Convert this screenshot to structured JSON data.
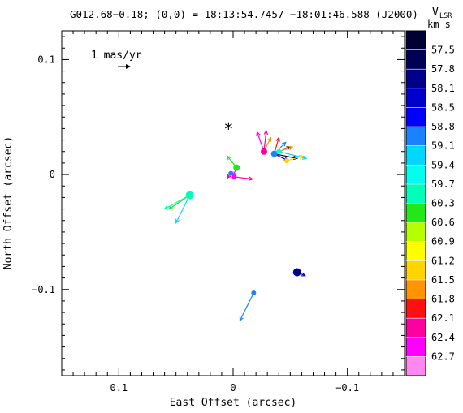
{
  "chart_data": {
    "type": "scatter",
    "title": "G012.68−0.18;  (0,0) = 18:13:54.7457    −18:01:46.588 (J2000)",
    "xlabel": "East Offset (arcsec)",
    "ylabel": "North Offset (arcsec)",
    "xlim": [
      0.15,
      -0.15
    ],
    "ylim": [
      -0.175,
      0.125
    ],
    "x_ticks": [
      {
        "value": 0.1,
        "label": "0.1"
      },
      {
        "value": 0,
        "label": "0"
      },
      {
        "value": -0.1,
        "label": "−0.1"
      }
    ],
    "y_ticks": [
      {
        "value": 0.1,
        "label": "0.1"
      },
      {
        "value": 0,
        "label": "0"
      },
      {
        "value": -0.1,
        "label": "−0.1"
      }
    ],
    "colorbar": {
      "title_main": "V",
      "title_sub": "LSR",
      "units": "km s",
      "labels": [
        "57.5",
        "57.8",
        "58.1",
        "58.5",
        "58.8",
        "59.1",
        "59.4",
        "59.7",
        "60.3",
        "60.6",
        "60.9",
        "61.2",
        "61.5",
        "61.8",
        "62.1",
        "62.4",
        "62.7"
      ],
      "colors": [
        "#000033",
        "#000055",
        "#000088",
        "#0000cc",
        "#0000ff",
        "#1a82ff",
        "#00d8ff",
        "#00ffee",
        "#00ffb8",
        "#22e81a",
        "#b4ff00",
        "#ffff00",
        "#ffd400",
        "#ff9300",
        "#ff1010",
        "#ff00a0",
        "#ff00ff",
        "#ff88f0"
      ]
    },
    "scale_arrow": {
      "label": "1 mas/yr",
      "dx": 1,
      "dy": 0
    },
    "reference_star": {
      "x": 0.004,
      "y": 0.041
    },
    "spots": [
      {
        "x": 0.038,
        "y": -0.018,
        "size": 5,
        "color": "#00ffb8"
      },
      {
        "x": -0.056,
        "y": -0.085,
        "size": 5,
        "color": "#000088"
      },
      {
        "x": -0.018,
        "y": -0.103,
        "size": 3,
        "color": "#1a82ff"
      },
      {
        "x": -0.003,
        "y": 0.006,
        "size": 4,
        "color": "#22e81a"
      },
      {
        "x": -0.001,
        "y": -0.002,
        "size": 3,
        "color": "#ff00ff"
      },
      {
        "x": 0.002,
        "y": 0.001,
        "size": 3,
        "color": "#1a82ff"
      },
      {
        "x": -0.027,
        "y": 0.02,
        "size": 4,
        "color": "#ff00a0"
      },
      {
        "x": -0.036,
        "y": 0.018,
        "size": 4,
        "color": "#1a82ff"
      },
      {
        "x": -0.047,
        "y": 0.012,
        "size": 3,
        "color": "#ffd400"
      },
      {
        "x": -0.04,
        "y": 0.02,
        "size": 3,
        "color": "#00ffb8"
      }
    ],
    "arrows": [
      {
        "x": 0.038,
        "y": -0.018,
        "dx": 0.018,
        "dy": -0.012,
        "color": "#22e81a"
      },
      {
        "x": 0.038,
        "y": -0.018,
        "dx": 0.022,
        "dy": -0.012,
        "color": "#00ffb8"
      },
      {
        "x": 0.038,
        "y": -0.018,
        "dx": 0.012,
        "dy": -0.024,
        "color": "#00d8ff"
      },
      {
        "x": -0.056,
        "y": -0.085,
        "dx": -0.007,
        "dy": -0.003,
        "color": "#0000cc"
      },
      {
        "x": -0.018,
        "y": -0.103,
        "dx": 0.012,
        "dy": -0.024,
        "color": "#1a82ff"
      },
      {
        "x": -0.003,
        "y": 0.006,
        "dx": 0.008,
        "dy": 0.01,
        "color": "#22e81a"
      },
      {
        "x": -0.003,
        "y": 0.006,
        "dx": 0.003,
        "dy": -0.007,
        "color": "#ff00ff"
      },
      {
        "x": -0.001,
        "y": -0.002,
        "dx": -0.016,
        "dy": -0.002,
        "color": "#ff00a0"
      },
      {
        "x": 0.002,
        "y": 0.001,
        "dx": 0.003,
        "dy": -0.004,
        "color": "#ff00a0"
      },
      {
        "x": -0.027,
        "y": 0.02,
        "dx": 0.006,
        "dy": 0.017,
        "color": "#ff00ff"
      },
      {
        "x": -0.027,
        "y": 0.02,
        "dx": -0.002,
        "dy": 0.018,
        "color": "#ff00a0"
      },
      {
        "x": -0.027,
        "y": 0.02,
        "dx": -0.006,
        "dy": 0.012,
        "color": "#ff9300"
      },
      {
        "x": -0.036,
        "y": 0.018,
        "dx": -0.012,
        "dy": -0.006,
        "color": "#000088"
      },
      {
        "x": -0.036,
        "y": 0.018,
        "dx": -0.014,
        "dy": 0.006,
        "color": "#0000cc"
      },
      {
        "x": -0.036,
        "y": 0.018,
        "dx": -0.02,
        "dy": -0.004,
        "color": "#000055"
      },
      {
        "x": -0.036,
        "y": 0.018,
        "dx": -0.01,
        "dy": 0.01,
        "color": "#1a82ff"
      },
      {
        "x": -0.036,
        "y": 0.018,
        "dx": -0.004,
        "dy": 0.014,
        "color": "#ff1010"
      },
      {
        "x": -0.04,
        "y": 0.02,
        "dx": -0.024,
        "dy": -0.006,
        "color": "#00d8ff"
      },
      {
        "x": -0.047,
        "y": 0.012,
        "dx": -0.014,
        "dy": 0.004,
        "color": "#ffd400"
      },
      {
        "x": -0.04,
        "y": 0.02,
        "dx": -0.012,
        "dy": 0.004,
        "color": "#ff9300"
      }
    ]
  }
}
